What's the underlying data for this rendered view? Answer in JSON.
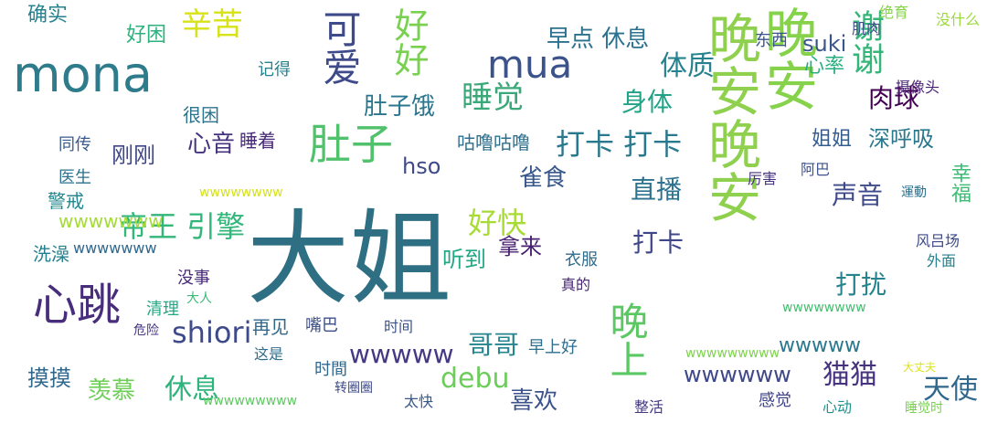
{
  "words": [
    {
      "text": "大姐",
      "color": "#2f6f84"
    },
    {
      "text": "晚安",
      "color": "#86d24a"
    },
    {
      "text": "晚安晚安",
      "color": "#8fd14f"
    },
    {
      "text": "mona",
      "color": "#2e7b8c"
    },
    {
      "text": "心跳",
      "color": "#472d7b"
    },
    {
      "text": "肚子",
      "color": "#4fc26b"
    },
    {
      "text": "晚上",
      "color": "#5cc863"
    },
    {
      "text": "可爱",
      "color": "#3e4a89"
    },
    {
      "text": "好好",
      "color": "#7ad151"
    },
    {
      "text": "mua",
      "color": "#3b528b"
    },
    {
      "text": "睡觉",
      "color": "#3aa878"
    },
    {
      "text": "谢谢",
      "color": "#34b679"
    },
    {
      "text": "打卡 打卡",
      "color": "#2a788e"
    },
    {
      "text": "辛苦",
      "color": "#d8e219"
    },
    {
      "text": "帝王 引擎",
      "color": "#32b67a"
    },
    {
      "text": "好快",
      "color": "#a8db34"
    },
    {
      "text": "早点 休息",
      "color": "#2c728e"
    },
    {
      "text": "体质",
      "color": "#26828e"
    },
    {
      "text": "shiori",
      "color": "#3e4a89"
    },
    {
      "text": "wwwww",
      "color": "#443983"
    },
    {
      "text": "debu",
      "color": "#6ccd5a"
    },
    {
      "text": "喜欢",
      "color": "#3b528b"
    },
    {
      "text": "猫猫",
      "color": "#46327e"
    },
    {
      "text": "天使",
      "color": "#31688e"
    },
    {
      "text": "打扰",
      "color": "#25838e"
    },
    {
      "text": "声音",
      "color": "#3e4989"
    },
    {
      "text": "直播",
      "color": "#2c728e"
    },
    {
      "text": "雀食",
      "color": "#38588c"
    },
    {
      "text": "肚子饿",
      "color": "#2a768e"
    },
    {
      "text": "身体",
      "color": "#20a386"
    },
    {
      "text": "肉球",
      "color": "#440154"
    },
    {
      "text": "咕噜咕噜",
      "color": "#2d708e"
    },
    {
      "text": "心音",
      "color": "#46337f"
    },
    {
      "text": "休息",
      "color": "#2eb37c"
    },
    {
      "text": "羡慕",
      "color": "#6ece58"
    },
    {
      "text": "摸摸",
      "color": "#31688e"
    },
    {
      "text": "哥哥",
      "color": "#25858e"
    },
    {
      "text": "拿来",
      "color": "#481f70"
    },
    {
      "text": "打卡",
      "color": "#3f4788"
    },
    {
      "text": "深呼吸",
      "color": "#2a788e"
    },
    {
      "text": "姐姐",
      "color": "#365c8d"
    },
    {
      "text": "suki",
      "color": "#39558c"
    },
    {
      "text": "wwwwww",
      "color": "#3f4889"
    },
    {
      "text": "wwwwwww",
      "color": "#a5db36"
    },
    {
      "text": "hso",
      "color": "#3e4a89"
    },
    {
      "text": "听到",
      "color": "#22a785"
    },
    {
      "text": "确实",
      "color": "#26828e"
    },
    {
      "text": "好困",
      "color": "#2db27d"
    },
    {
      "text": "刚刚",
      "color": "#3f4788"
    },
    {
      "text": "再见",
      "color": "#31688e"
    },
    {
      "text": "心率",
      "color": "#29af7f"
    },
    {
      "text": "摄像头",
      "color": "#482173"
    },
    {
      "text": "幸福",
      "color": "#3dbc74"
    },
    {
      "text": "洗澡",
      "color": "#27808e"
    },
    {
      "text": "警戒",
      "color": "#24878e"
    },
    {
      "text": "很困",
      "color": "#2c738e"
    },
    {
      "text": "睡着",
      "color": "#482878"
    },
    {
      "text": "医生",
      "color": "#2d718e"
    },
    {
      "text": "同传",
      "color": "#38598c"
    },
    {
      "text": "记得",
      "color": "#26818e"
    },
    {
      "text": "早上好",
      "color": "#2e6e8e"
    },
    {
      "text": "东西",
      "color": "#3b528b"
    },
    {
      "text": "肌肉",
      "color": "#3e4c8a"
    },
    {
      "text": "绝育",
      "color": "#86d549"
    },
    {
      "text": "没什么",
      "color": "#9bd93c"
    },
    {
      "text": "wwwww",
      "color": "#2a788e"
    },
    {
      "text": "wwwwwww",
      "color": "#31688e"
    },
    {
      "text": "时间",
      "color": "#3b528b"
    },
    {
      "text": "嘴巴",
      "color": "#3c4f8a"
    },
    {
      "text": "没事",
      "color": "#472a7a"
    },
    {
      "text": "清理",
      "color": "#22a884"
    },
    {
      "text": "大人",
      "color": "#3aba76"
    },
    {
      "text": "危险",
      "color": "#463480"
    },
    {
      "text": "wwwwwwww",
      "color": "#d5e21a"
    },
    {
      "text": "wwwwwwwww",
      "color": "#5ec962"
    },
    {
      "text": "wwwwwwwww",
      "color": "#7fd34e"
    },
    {
      "text": "wwwwwwww",
      "color": "#44bf70"
    },
    {
      "text": "衣服",
      "color": "#2f6c8e"
    },
    {
      "text": "感觉",
      "color": "#414487"
    },
    {
      "text": "真的",
      "color": "#482475"
    },
    {
      "text": "时間",
      "color": "#31688e"
    },
    {
      "text": "这是",
      "color": "#2e6e8e"
    },
    {
      "text": "转圈圈",
      "color": "#3e4a89"
    },
    {
      "text": "太快",
      "color": "#38598c"
    },
    {
      "text": "整活",
      "color": "#453781"
    },
    {
      "text": "心动",
      "color": "#20928c"
    },
    {
      "text": "睡觉时",
      "color": "#7ad151"
    },
    {
      "text": "大丈夫",
      "color": "#dde318"
    },
    {
      "text": "厉害",
      "color": "#46337f"
    },
    {
      "text": "阿巴",
      "color": "#3b528b"
    },
    {
      "text": "運動",
      "color": "#2c728e"
    },
    {
      "text": "风吕场",
      "color": "#3e4a89"
    },
    {
      "text": "外面",
      "color": "#26828e"
    }
  ],
  "colors": {
    "background": "#ffffff"
  }
}
